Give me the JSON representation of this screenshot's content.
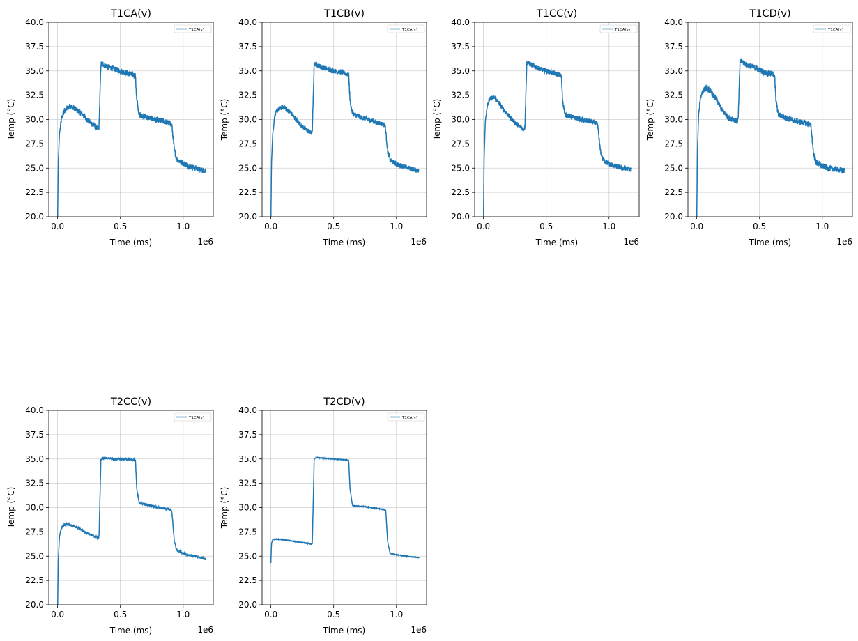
{
  "figure": {
    "xlabel": "Time (ms)",
    "ylabel": "Temp (°C)",
    "x_offset_label": "1e6",
    "legend_label": "T1CA(v)",
    "line_color": "#1f77b4",
    "grid_color": "#b0b0b0"
  },
  "chart_data": [
    {
      "type": "line",
      "title": "T1CA(v)",
      "xlabel": "Time (ms)",
      "ylabel": "Temp (°C)",
      "xlim": [
        -70000,
        1240000
      ],
      "ylim": [
        20,
        40
      ],
      "xticks": [
        "0.0",
        "0.5",
        "1.0"
      ],
      "x_offset_label": "1e6",
      "yticks": [
        "20.0",
        "22.5",
        "25.0",
        "27.5",
        "30.0",
        "32.5",
        "35.0",
        "37.5",
        "40.0"
      ],
      "grid": true,
      "legend": "top-right",
      "series": [
        {
          "name": "T1CA(v)",
          "noise": 0.3,
          "x": [
            0,
            5000,
            15000,
            30000,
            50000,
            80000,
            100000,
            150000,
            200000,
            250000,
            300000,
            320000,
            330000,
            345000,
            360000,
            400000,
            450000,
            500000,
            550000,
            600000,
            620000,
            630000,
            650000,
            700000,
            750000,
            800000,
            850000,
            900000,
            910000,
            930000,
            950000,
            1000000,
            1050000,
            1100000,
            1150000,
            1180000
          ],
          "y": [
            19.0,
            25.5,
            28.5,
            30.0,
            30.8,
            31.2,
            31.4,
            31.0,
            30.5,
            29.8,
            29.3,
            29.0,
            29.2,
            35.7,
            35.7,
            35.4,
            35.2,
            35.0,
            34.8,
            34.6,
            34.5,
            32.0,
            30.5,
            30.3,
            30.1,
            29.9,
            29.8,
            29.6,
            29.4,
            26.8,
            25.9,
            25.5,
            25.2,
            25.0,
            24.8,
            24.7
          ]
        }
      ]
    },
    {
      "type": "line",
      "title": "T1CB(v)",
      "xlabel": "Time (ms)",
      "ylabel": "Temp (°C)",
      "xlim": [
        -70000,
        1240000
      ],
      "ylim": [
        20,
        40
      ],
      "xticks": [
        "0.0",
        "0.5",
        "1.0"
      ],
      "x_offset_label": "1e6",
      "yticks": [
        "20.0",
        "22.5",
        "25.0",
        "27.5",
        "30.0",
        "32.5",
        "35.0",
        "37.5",
        "40.0"
      ],
      "grid": true,
      "legend": "top-right",
      "series": [
        {
          "name": "T1CA(v)",
          "noise": 0.25,
          "x": [
            0,
            5000,
            15000,
            30000,
            50000,
            80000,
            100000,
            150000,
            200000,
            250000,
            300000,
            320000,
            330000,
            345000,
            360000,
            400000,
            450000,
            500000,
            550000,
            600000,
            620000,
            630000,
            650000,
            700000,
            750000,
            800000,
            850000,
            900000,
            910000,
            930000,
            950000,
            1000000,
            1050000,
            1100000,
            1150000,
            1180000
          ],
          "y": [
            19.0,
            25.5,
            28.5,
            30.3,
            30.9,
            31.2,
            31.3,
            30.8,
            30.0,
            29.3,
            28.8,
            28.6,
            28.8,
            35.7,
            35.7,
            35.4,
            35.2,
            35.0,
            34.9,
            34.7,
            34.6,
            32.0,
            30.6,
            30.3,
            30.1,
            29.9,
            29.7,
            29.5,
            29.4,
            26.8,
            25.8,
            25.4,
            25.2,
            25.0,
            24.8,
            24.7
          ]
        }
      ]
    },
    {
      "type": "line",
      "title": "T1CC(v)",
      "xlabel": "Time (ms)",
      "ylabel": "Temp (°C)",
      "xlim": [
        -70000,
        1240000
      ],
      "ylim": [
        20,
        40
      ],
      "xticks": [
        "0.0",
        "0.5",
        "1.0"
      ],
      "x_offset_label": "1e6",
      "yticks": [
        "20.0",
        "22.5",
        "25.0",
        "27.5",
        "30.0",
        "32.5",
        "35.0",
        "37.5",
        "40.0"
      ],
      "grid": true,
      "legend": "top-right",
      "series": [
        {
          "name": "T1CA(v)",
          "noise": 0.25,
          "x": [
            0,
            5000,
            15000,
            30000,
            50000,
            80000,
            100000,
            150000,
            200000,
            250000,
            300000,
            320000,
            330000,
            345000,
            360000,
            400000,
            450000,
            500000,
            550000,
            600000,
            620000,
            630000,
            650000,
            700000,
            750000,
            800000,
            850000,
            900000,
            910000,
            930000,
            950000,
            1000000,
            1050000,
            1100000,
            1150000,
            1180000
          ],
          "y": [
            19.0,
            26.0,
            29.8,
            31.5,
            32.1,
            32.3,
            32.1,
            31.2,
            30.4,
            29.7,
            29.2,
            29.0,
            29.2,
            35.8,
            35.8,
            35.5,
            35.2,
            35.0,
            34.8,
            34.6,
            34.5,
            32.0,
            30.5,
            30.3,
            30.1,
            29.9,
            29.8,
            29.6,
            29.4,
            26.9,
            25.9,
            25.4,
            25.2,
            25.0,
            24.9,
            24.8
          ]
        }
      ]
    },
    {
      "type": "line",
      "title": "T1CD(v)",
      "xlabel": "Time (ms)",
      "ylabel": "Temp (°C)",
      "xlim": [
        -70000,
        1240000
      ],
      "ylim": [
        20,
        40
      ],
      "xticks": [
        "0.0",
        "0.5",
        "1.0"
      ],
      "x_offset_label": "1e6",
      "yticks": [
        "20.0",
        "22.5",
        "25.0",
        "27.5",
        "30.0",
        "32.5",
        "35.0",
        "37.5",
        "40.0"
      ],
      "grid": true,
      "legend": "top-right",
      "series": [
        {
          "name": "T1CA(v)",
          "noise": 0.3,
          "x": [
            0,
            5000,
            15000,
            30000,
            50000,
            80000,
            100000,
            150000,
            200000,
            250000,
            300000,
            320000,
            330000,
            345000,
            360000,
            400000,
            450000,
            500000,
            550000,
            600000,
            620000,
            630000,
            650000,
            700000,
            750000,
            800000,
            850000,
            900000,
            910000,
            930000,
            950000,
            1000000,
            1050000,
            1100000,
            1150000,
            1180000
          ],
          "y": [
            19.0,
            26.5,
            30.5,
            32.3,
            33.0,
            33.2,
            33.0,
            32.2,
            31.0,
            30.2,
            30.0,
            29.8,
            30.0,
            36.0,
            36.0,
            35.6,
            35.4,
            35.1,
            34.8,
            34.7,
            34.6,
            32.0,
            30.5,
            30.2,
            30.0,
            29.8,
            29.7,
            29.5,
            29.3,
            26.5,
            25.6,
            25.2,
            25.0,
            24.9,
            24.8,
            24.7
          ]
        }
      ]
    },
    {
      "type": "line",
      "title": "T2CC(v)",
      "xlabel": "Time (ms)",
      "ylabel": "Temp (°C)",
      "xlim": [
        -70000,
        1240000
      ],
      "ylim": [
        20,
        40
      ],
      "xticks": [
        "0.0",
        "0.5",
        "1.0"
      ],
      "x_offset_label": "1e6",
      "yticks": [
        "20.0",
        "22.5",
        "25.0",
        "27.5",
        "30.0",
        "32.5",
        "35.0",
        "37.5",
        "40.0"
      ],
      "grid": true,
      "legend": "top-right",
      "series": [
        {
          "name": "T1CA(v)",
          "noise": 0.12,
          "x": [
            0,
            5000,
            15000,
            30000,
            50000,
            80000,
            100000,
            150000,
            200000,
            250000,
            300000,
            320000,
            330000,
            345000,
            360000,
            400000,
            450000,
            500000,
            550000,
            600000,
            620000,
            630000,
            650000,
            700000,
            750000,
            800000,
            850000,
            900000,
            910000,
            930000,
            950000,
            1000000,
            1050000,
            1100000,
            1150000,
            1180000
          ],
          "y": [
            19.0,
            24.5,
            27.0,
            27.9,
            28.2,
            28.3,
            28.2,
            28.0,
            27.6,
            27.3,
            27.0,
            26.9,
            27.0,
            34.9,
            35.1,
            35.1,
            35.0,
            35.0,
            35.0,
            34.9,
            34.9,
            32.0,
            30.5,
            30.3,
            30.2,
            30.0,
            29.9,
            29.8,
            29.6,
            26.5,
            25.6,
            25.3,
            25.1,
            25.0,
            24.8,
            24.7
          ]
        }
      ]
    },
    {
      "type": "line",
      "title": "T2CD(v)",
      "xlabel": "Time (ms)",
      "ylabel": "Temp (°C)",
      "xlim": [
        -70000,
        1240000
      ],
      "ylim": [
        20,
        40
      ],
      "xticks": [
        "0.0",
        "0.5",
        "1.0"
      ],
      "x_offset_label": "1e6",
      "yticks": [
        "20.0",
        "22.5",
        "25.0",
        "27.5",
        "30.0",
        "32.5",
        "35.0",
        "37.5",
        "40.0"
      ],
      "grid": true,
      "legend": "top-right",
      "series": [
        {
          "name": "T1CA(v)",
          "noise": 0.03,
          "x": [
            0,
            5000,
            15000,
            30000,
            50000,
            100000,
            150000,
            200000,
            250000,
            300000,
            320000,
            330000,
            345000,
            360000,
            400000,
            450000,
            500000,
            550000,
            600000,
            620000,
            630000,
            650000,
            700000,
            750000,
            800000,
            850000,
            900000,
            915000,
            930000,
            950000,
            1000000,
            1050000,
            1100000,
            1150000,
            1180000
          ],
          "y": [
            24.3,
            26.3,
            26.7,
            26.75,
            26.75,
            26.7,
            26.6,
            26.5,
            26.4,
            26.3,
            26.25,
            26.3,
            35.0,
            35.15,
            35.1,
            35.05,
            35.0,
            34.95,
            34.9,
            34.85,
            32.0,
            30.2,
            30.15,
            30.1,
            30.0,
            29.9,
            29.8,
            29.7,
            26.5,
            25.3,
            25.15,
            25.05,
            24.95,
            24.9,
            24.85
          ]
        }
      ]
    }
  ]
}
